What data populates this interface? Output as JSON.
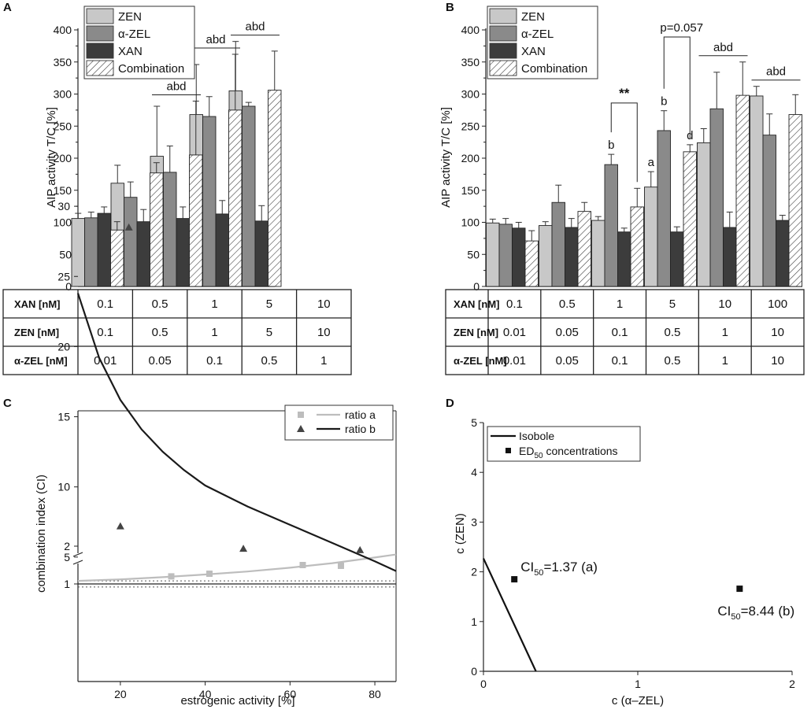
{
  "colors": {
    "zen": "#c8c8c8",
    "azel": "#8a8a8a",
    "xan": "#3c3c3c",
    "combo": "#ffffff",
    "ratio_a": "#bdbdbd",
    "ratio_b": "#1a1a1a"
  },
  "panels": {
    "A": {
      "letter": "A",
      "ylabel": "AIP activity T/C [%]"
    },
    "B": {
      "letter": "B",
      "ylabel": "AIP activity T/C [%]"
    },
    "C": {
      "letter": "C",
      "xlabel": "estrogenic activity [%]",
      "ylabel": "combination index (CI)"
    },
    "D": {
      "letter": "D",
      "xlabel": "c (α–ZEL)",
      "ylabel": "c (ZEN)"
    }
  },
  "legend_bars": [
    "ZEN",
    "α-ZEL",
    "XAN",
    "Combination"
  ],
  "tables": {
    "A": {
      "rows": [
        {
          "label": "XAN [nM]",
          "cells": [
            "0.1",
            "0.5",
            "1",
            "5",
            "10"
          ]
        },
        {
          "label": "ZEN [nM]",
          "cells": [
            "0.1",
            "0.5",
            "1",
            "5",
            "10"
          ]
        },
        {
          "label": "α-ZEL [nM]",
          "cells": [
            "0.01",
            "0.05",
            "0.1",
            "0.5",
            "1"
          ]
        }
      ]
    },
    "B": {
      "rows": [
        {
          "label": "XAN [nM]",
          "cells": [
            "0.1",
            "0.5",
            "1",
            "5",
            "10",
            "100"
          ]
        },
        {
          "label": "ZEN [nM]",
          "cells": [
            "0.01",
            "0.05",
            "0.1",
            "0.5",
            "1",
            "10"
          ]
        },
        {
          "label": "α-ZEL [nM]",
          "cells": [
            "0.01",
            "0.05",
            "0.1",
            "0.5",
            "1",
            "10"
          ]
        }
      ]
    }
  },
  "chart_data": [
    {
      "panel": "A",
      "type": "bar",
      "ylabel": "AIP activity T/C [%]",
      "ylim": [
        0,
        400
      ],
      "yticks": [
        0,
        50,
        100,
        150,
        200,
        250,
        300,
        350,
        400
      ],
      "series": [
        {
          "name": "ZEN",
          "values": [
            106,
            161,
            203,
            268,
            305
          ],
          "errors": [
            8,
            28,
            78,
            78,
            77
          ]
        },
        {
          "name": "α-ZEL",
          "values": [
            107,
            139,
            178,
            265,
            281
          ],
          "errors": [
            9,
            24,
            41,
            31,
            6
          ]
        },
        {
          "name": "XAN",
          "values": [
            114,
            101,
            106,
            113,
            102
          ],
          "errors": [
            10,
            19,
            18,
            21,
            24
          ]
        },
        {
          "name": "Combination",
          "values": [
            88,
            177,
            205,
            275,
            306
          ],
          "errors": [
            13,
            16,
            84,
            87,
            61
          ]
        }
      ],
      "annotations": [
        {
          "group": 2,
          "text": "abd"
        },
        {
          "group": 3,
          "text": "abd"
        },
        {
          "group": 4,
          "text": "abd"
        }
      ]
    },
    {
      "panel": "B",
      "type": "bar",
      "ylabel": "AIP activity T/C [%]",
      "ylim": [
        0,
        400
      ],
      "yticks": [
        0,
        50,
        100,
        150,
        200,
        250,
        300,
        350,
        400
      ],
      "series": [
        {
          "name": "ZEN",
          "values": [
            99,
            95,
            103,
            155,
            224,
            297
          ],
          "errors": [
            6,
            6,
            6,
            24,
            22,
            15
          ]
        },
        {
          "name": "α-ZEL",
          "values": [
            97,
            131,
            190,
            243,
            277,
            236
          ],
          "errors": [
            9,
            27,
            16,
            31,
            57,
            33
          ]
        },
        {
          "name": "XAN",
          "values": [
            91,
            92,
            85,
            85,
            92,
            103
          ],
          "errors": [
            9,
            14,
            6,
            8,
            24,
            8
          ]
        },
        {
          "name": "Combination",
          "values": [
            71,
            117,
            124,
            210,
            298,
            268
          ],
          "errors": [
            16,
            14,
            29,
            11,
            52,
            31
          ]
        }
      ],
      "annotations": [
        {
          "group": 4,
          "text": "abd"
        },
        {
          "group": 5,
          "text": "abd"
        }
      ],
      "letters": [
        {
          "group": 2,
          "series": 1,
          "text": "b"
        },
        {
          "group": 3,
          "series": 0,
          "text": "a"
        },
        {
          "group": 3,
          "series": 1,
          "text": "b"
        },
        {
          "group": 3,
          "series": 3,
          "text": "d"
        }
      ],
      "brackets": [
        {
          "group": 2,
          "text": "**"
        },
        {
          "group": 3,
          "text": "p=0.057"
        }
      ]
    },
    {
      "panel": "C",
      "type": "scatter",
      "xlabel": "estrogenic activity [%]",
      "ylabel": "combination index (CI)",
      "xlim": [
        10,
        85
      ],
      "xticks": [
        20,
        40,
        60,
        80
      ],
      "yticks_lower": [
        1,
        2
      ],
      "yticks_upper": [
        5,
        10,
        15,
        20,
        25,
        30
      ],
      "series": [
        {
          "name": "ratio a",
          "points": [
            [
              32,
              1.2
            ],
            [
              41,
              1.27
            ],
            [
              63,
              1.5
            ],
            [
              72,
              1.48
            ]
          ],
          "curve": [
            [
              10,
              1.08
            ],
            [
              20,
              1.12
            ],
            [
              30,
              1.18
            ],
            [
              40,
              1.25
            ],
            [
              50,
              1.33
            ],
            [
              60,
              1.43
            ],
            [
              70,
              1.55
            ],
            [
              80,
              1.7
            ],
            [
              85,
              1.78
            ]
          ]
        },
        {
          "name": "ratio b",
          "points": [
            [
              20,
              7.2
            ],
            [
              22,
              28.5
            ],
            [
              49,
              5.6
            ],
            [
              76.5,
              5.5
            ]
          ],
          "curve": [
            [
              10,
              23.8
            ],
            [
              15,
              19.2
            ],
            [
              20,
              16.2
            ],
            [
              25,
              14.1
            ],
            [
              30,
              12.5
            ],
            [
              35,
              11.2
            ],
            [
              40,
              10.1
            ],
            [
              50,
              8.6
            ],
            [
              60,
              7.3
            ],
            [
              70,
              6.0
            ],
            [
              80,
              4.7
            ],
            [
              85,
              4.0
            ]
          ]
        }
      ],
      "reference_lines": [
        1.0,
        1.08,
        0.92
      ]
    },
    {
      "panel": "D",
      "type": "scatter",
      "xlabel": "c (α–ZEL)",
      "ylabel": "c (ZEN)",
      "xlim": [
        0,
        2
      ],
      "ylim": [
        0,
        5
      ],
      "xticks": [
        0,
        1,
        2
      ],
      "yticks": [
        0,
        1,
        2,
        3,
        4,
        5
      ],
      "series": [
        {
          "name": "Isobole",
          "line": [
            [
              0,
              2.27
            ],
            [
              0.34,
              0
            ]
          ]
        },
        {
          "name": "ED50 concentrations",
          "points": [
            [
              0.2,
              1.85
            ],
            [
              1.66,
              1.66
            ]
          ]
        }
      ],
      "point_labels": [
        "=1.37 (a)",
        "=8.44 (b)"
      ],
      "ci_label": "CI",
      "ci_sub": "50"
    }
  ],
  "legend_C": [
    "ratio a",
    "ratio b"
  ],
  "legend_D": {
    "isobole": "Isobole",
    "ed": "ED",
    "ed_sub": "50",
    "ed_rest": " concentrations"
  }
}
